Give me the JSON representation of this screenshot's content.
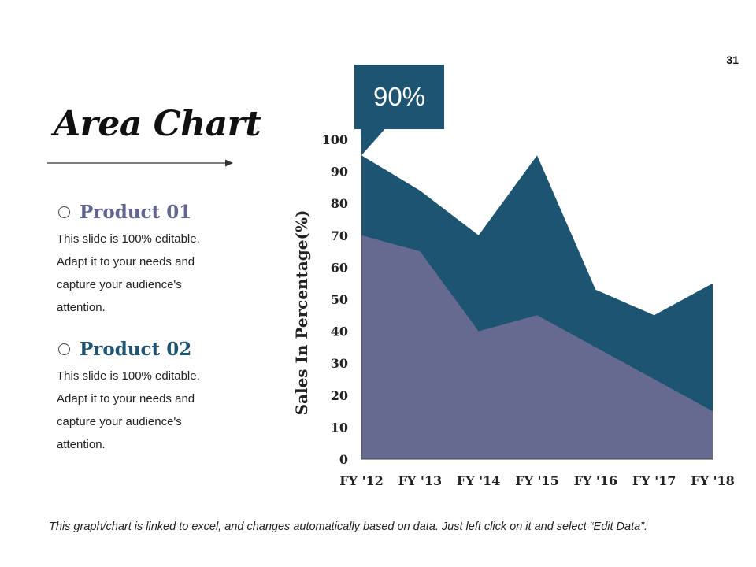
{
  "page": {
    "number": "31",
    "title": "Area Chart"
  },
  "products": [
    {
      "heading": "Product 01",
      "desc_lines": [
        "This slide is 100% editable.",
        "Adapt it to your needs and",
        "capture your audience's",
        "attention."
      ]
    },
    {
      "heading": "Product 02",
      "desc_lines": [
        "This slide is 100% editable.",
        "Adapt it to your needs and",
        "capture your audience's",
        "attention."
      ]
    }
  ],
  "callout": {
    "text": "90%"
  },
  "footer": "This graph/chart is linked to excel, and changes automatically based on data. Just left click on it and select “Edit Data”.",
  "colors": {
    "product01": "#666a91",
    "product02": "#1d5471"
  },
  "chart_data": {
    "type": "area",
    "title": "",
    "xlabel": "",
    "ylabel": "Sales In Percentage(%)",
    "ylim": [
      0,
      100
    ],
    "yticks": [
      "0",
      "10",
      "20",
      "30",
      "40",
      "50",
      "60",
      "70",
      "80",
      "90",
      "100"
    ],
    "categories": [
      "FY '12",
      "FY '13",
      "FY '14",
      "FY '15",
      "FY '16",
      "FY '17",
      "FY '18"
    ],
    "series": [
      {
        "name": "Product 02",
        "values": [
          95,
          84,
          70,
          95,
          53,
          45,
          55
        ]
      },
      {
        "name": "Product 01",
        "values": [
          70,
          65,
          40,
          45,
          35,
          25,
          15
        ]
      }
    ],
    "grid": false,
    "legend": "none"
  }
}
